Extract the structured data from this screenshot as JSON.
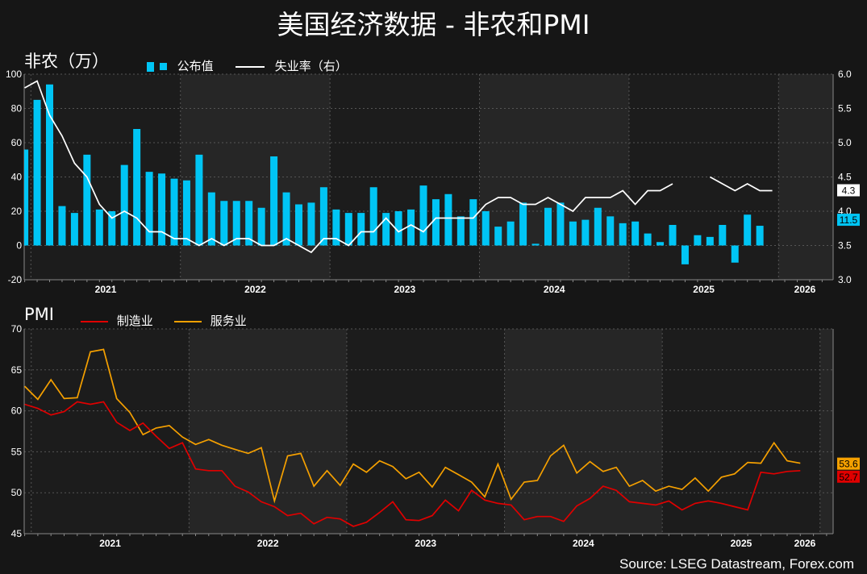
{
  "title": "美国经济数据 - 非农和PMI",
  "source": "Source: LSEG Datastream, Forex.com",
  "colors": {
    "background": "#161616",
    "panel_alt": "#262626",
    "bar": "#00c5f5",
    "unemployment": "#ffffff",
    "manufacturing": "#e00000",
    "services": "#f5a000",
    "grid": "#555555"
  },
  "chart_data": [
    {
      "type": "bar",
      "ylabel": "非农（万）",
      "ylabel_right": "(右)",
      "ylim": [
        -20,
        100
      ],
      "y_ticks": [
        -20,
        0,
        20,
        40,
        60,
        80,
        100
      ],
      "ylim_right": [
        3.0,
        6.0
      ],
      "y_ticks_right": [
        "3.0",
        "3.5",
        "4.0",
        "4.5",
        "5.0",
        "5.5",
        "6.0"
      ],
      "x_year_labels": [
        "2021",
        "2022",
        "2023",
        "2024",
        "2025",
        "2026"
      ],
      "grid": true,
      "legend_position": "top-left",
      "series": [
        {
          "name": "公布值",
          "type": "bar",
          "axis": "left",
          "x": [
            "2020-12",
            "2021-01",
            "2021-02",
            "2021-03",
            "2021-04",
            "2021-05",
            "2021-06",
            "2021-07",
            "2021-08",
            "2021-09",
            "2021-10",
            "2021-11",
            "2021-12",
            "2022-01",
            "2022-02",
            "2022-03",
            "2022-04",
            "2022-05",
            "2022-06",
            "2022-07",
            "2022-08",
            "2022-09",
            "2022-10",
            "2022-11",
            "2022-12",
            "2023-01",
            "2023-02",
            "2023-03",
            "2023-04",
            "2023-05",
            "2023-06",
            "2023-07",
            "2023-08",
            "2023-09",
            "2023-10",
            "2023-11",
            "2023-12",
            "2024-01",
            "2024-02",
            "2024-03",
            "2024-04",
            "2024-05",
            "2024-06",
            "2024-07",
            "2024-08",
            "2024-09",
            "2024-10",
            "2024-11",
            "2024-12",
            "2025-01",
            "2025-02",
            "2025-03",
            "2025-04",
            "2025-05",
            "2025-06",
            "2025-07",
            "2025-08",
            "2025-09",
            "2025-10",
            "2025-11",
            "2025-12",
            "2026-01",
            "2026-02"
          ],
          "values": [
            56,
            85,
            94,
            23,
            19,
            53,
            21,
            20,
            47,
            68,
            43,
            42,
            39,
            38,
            53,
            31,
            26,
            26,
            26,
            22,
            52,
            31,
            24,
            25,
            34,
            21,
            19,
            19,
            34,
            19,
            20,
            21,
            35,
            27,
            30,
            17,
            27,
            20,
            11,
            14,
            25,
            1,
            22,
            25,
            14,
            15,
            22,
            17,
            13,
            14,
            7,
            2,
            12,
            -11,
            6,
            5,
            12,
            -10,
            18,
            11.5,
            null,
            null,
            null
          ]
        },
        {
          "name": "失业率（右）",
          "type": "line",
          "axis": "right",
          "x": [
            "2020-12",
            "2021-01",
            "2021-02",
            "2021-03",
            "2021-04",
            "2021-05",
            "2021-06",
            "2021-07",
            "2021-08",
            "2021-09",
            "2021-10",
            "2021-11",
            "2021-12",
            "2022-01",
            "2022-02",
            "2022-03",
            "2022-04",
            "2022-05",
            "2022-06",
            "2022-07",
            "2022-08",
            "2022-09",
            "2022-10",
            "2022-11",
            "2022-12",
            "2023-01",
            "2023-02",
            "2023-03",
            "2023-04",
            "2023-05",
            "2023-06",
            "2023-07",
            "2023-08",
            "2023-09",
            "2023-10",
            "2023-11",
            "2023-12",
            "2024-01",
            "2024-02",
            "2024-03",
            "2024-04",
            "2024-05",
            "2024-06",
            "2024-07",
            "2024-08",
            "2024-09",
            "2024-10",
            "2024-11",
            "2024-12",
            "2025-01",
            "2025-02",
            "2025-03",
            "2025-04",
            "2025-05",
            "2025-06",
            "2025-07",
            "2025-08",
            "2025-09",
            "2025-10",
            "2025-11",
            "2025-12",
            "2026-01",
            "2026-02"
          ],
          "values": [
            5.8,
            5.9,
            5.4,
            5.1,
            4.7,
            4.5,
            4.1,
            3.9,
            4.0,
            3.9,
            3.7,
            3.7,
            3.6,
            3.6,
            3.5,
            3.6,
            3.5,
            3.6,
            3.6,
            3.5,
            3.5,
            3.6,
            3.5,
            3.4,
            3.6,
            3.6,
            3.5,
            3.7,
            3.7,
            3.9,
            3.7,
            3.8,
            3.7,
            3.9,
            3.9,
            3.9,
            3.9,
            4.1,
            4.2,
            4.2,
            4.1,
            4.1,
            4.2,
            4.1,
            4.0,
            4.2,
            4.2,
            4.2,
            4.3,
            4.1,
            4.3,
            4.3,
            4.4,
            null,
            null,
            4.5,
            4.4,
            4.3,
            4.4,
            4.3,
            4.3,
            null,
            null
          ]
        }
      ],
      "last_value_labels": [
        {
          "series": "失业率（右）",
          "text": "4.3",
          "value": 4.3
        },
        {
          "series": "公布值",
          "text": "11.5",
          "value": 11.5
        }
      ]
    },
    {
      "type": "line",
      "ylabel": "PMI",
      "ylim": [
        45,
        70
      ],
      "y_ticks": [
        45,
        50,
        55,
        60,
        65,
        70
      ],
      "x_year_labels": [
        "2021",
        "2022",
        "2023",
        "2024",
        "2025",
        "2026"
      ],
      "grid": true,
      "legend_position": "top-left",
      "series": [
        {
          "name": "制造业",
          "x": [
            "2020-12",
            "2021-01",
            "2021-02",
            "2021-03",
            "2021-04",
            "2021-05",
            "2021-06",
            "2021-07",
            "2021-08",
            "2021-09",
            "2021-10",
            "2021-11",
            "2021-12",
            "2022-01",
            "2022-02",
            "2022-03",
            "2022-04",
            "2022-05",
            "2022-06",
            "2022-07",
            "2022-08",
            "2022-09",
            "2022-10",
            "2022-11",
            "2022-12",
            "2023-01",
            "2023-02",
            "2023-03",
            "2023-04",
            "2023-05",
            "2023-06",
            "2023-07",
            "2023-08",
            "2023-09",
            "2023-10",
            "2023-11",
            "2023-12",
            "2024-01",
            "2024-02",
            "2024-03",
            "2024-04",
            "2024-05",
            "2024-06",
            "2024-07",
            "2024-08",
            "2024-09",
            "2024-10",
            "2024-11",
            "2024-12",
            "2025-01",
            "2025-02",
            "2025-03",
            "2025-04",
            "2025-05",
            "2025-06",
            "2025-07",
            "2025-08",
            "2025-09",
            "2025-10",
            "2025-11",
            "2025-12",
            "2026-01",
            "2026-02"
          ],
          "values": [
            60.8,
            60.3,
            59.5,
            59.9,
            61.1,
            60.8,
            61.1,
            58.6,
            57.6,
            58.5,
            56.9,
            55.4,
            56.1,
            52.9,
            52.7,
            52.7,
            50.8,
            50.1,
            48.9,
            48.3,
            47.2,
            47.5,
            46.2,
            47.0,
            46.8,
            45.9,
            46.4,
            47.6,
            48.9,
            46.7,
            46.6,
            47.2,
            49.1,
            47.8,
            50.3,
            49.1,
            48.7,
            48.5,
            46.7,
            47.1,
            47.1,
            46.5,
            48.4,
            49.3,
            50.8,
            50.3,
            48.9,
            48.7,
            48.5,
            49.0,
            47.9,
            48.7,
            49.0,
            48.7,
            48.3,
            47.9,
            52.5,
            52.3,
            52.6,
            52.7,
            null,
            null,
            null
          ]
        },
        {
          "name": "服务业",
          "x": [
            "2020-12",
            "2021-01",
            "2021-02",
            "2021-03",
            "2021-04",
            "2021-05",
            "2021-06",
            "2021-07",
            "2021-08",
            "2021-09",
            "2021-10",
            "2021-11",
            "2021-12",
            "2022-01",
            "2022-02",
            "2022-03",
            "2022-04",
            "2022-05",
            "2022-06",
            "2022-07",
            "2022-08",
            "2022-09",
            "2022-10",
            "2022-11",
            "2022-12",
            "2023-01",
            "2023-02",
            "2023-03",
            "2023-04",
            "2023-05",
            "2023-06",
            "2023-07",
            "2023-08",
            "2023-09",
            "2023-10",
            "2023-11",
            "2023-12",
            "2024-01",
            "2024-02",
            "2024-03",
            "2024-04",
            "2024-05",
            "2024-06",
            "2024-07",
            "2024-08",
            "2024-09",
            "2024-10",
            "2024-11",
            "2024-12",
            "2025-01",
            "2025-02",
            "2025-03",
            "2025-04",
            "2025-05",
            "2025-06",
            "2025-07",
            "2025-08",
            "2025-09",
            "2025-10",
            "2025-11",
            "2025-12",
            "2026-01",
            "2026-02"
          ],
          "values": [
            63.0,
            61.4,
            63.8,
            61.5,
            61.6,
            67.2,
            67.5,
            61.5,
            59.8,
            57.1,
            57.9,
            58.2,
            56.8,
            55.9,
            56.5,
            55.8,
            55.3,
            54.8,
            55.5,
            49.0,
            54.5,
            54.8,
            50.8,
            52.7,
            50.9,
            53.5,
            52.5,
            53.9,
            53.2,
            51.7,
            52.5,
            50.7,
            53.1,
            52.2,
            51.3,
            49.5,
            53.5,
            49.2,
            51.3,
            51.5,
            54.5,
            55.8,
            52.4,
            53.8,
            52.6,
            53.1,
            50.8,
            51.5,
            50.2,
            50.8,
            50.4,
            51.8,
            50.2,
            51.9,
            52.3,
            53.7,
            53.6,
            56.1,
            53.9,
            53.6,
            null,
            null,
            null
          ]
        }
      ],
      "last_value_labels": [
        {
          "series": "服务业",
          "text": "53.6",
          "value": 53.6
        },
        {
          "series": "制造业",
          "text": "52.7",
          "value": 52.7
        }
      ]
    }
  ]
}
